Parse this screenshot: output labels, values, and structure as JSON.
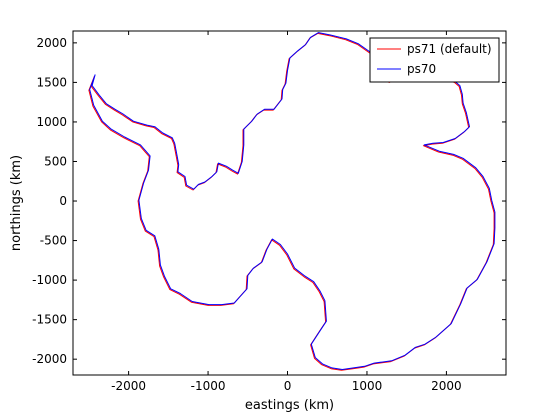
{
  "chart_data": {
    "type": "line",
    "title": "",
    "xlabel": "eastings (km)",
    "ylabel": "northings (km)",
    "xlim": [
      -2700,
      2750
    ],
    "ylim": [
      -2200,
      2150
    ],
    "xticks": [
      -2000,
      -1000,
      0,
      1000,
      2000
    ],
    "yticks": [
      -2000,
      -1500,
      -1000,
      -500,
      0,
      500,
      1000,
      1500,
      2000
    ],
    "grid": false,
    "legend_position": "top-right",
    "series": [
      {
        "name": "ps71 (default)",
        "color": "#ff0000",
        "points": [
          [
            -2430,
            1580
          ],
          [
            -2470,
            1450
          ],
          [
            -2380,
            1330
          ],
          [
            -2290,
            1220
          ],
          [
            -2180,
            1150
          ],
          [
            -2080,
            1090
          ],
          [
            -1950,
            1000
          ],
          [
            -1780,
            950
          ],
          [
            -1680,
            930
          ],
          [
            -1580,
            850
          ],
          [
            -1460,
            790
          ],
          [
            -1430,
            720
          ],
          [
            -1400,
            560
          ],
          [
            -1380,
            450
          ],
          [
            -1390,
            360
          ],
          [
            -1300,
            300
          ],
          [
            -1280,
            190
          ],
          [
            -1190,
            140
          ],
          [
            -1130,
            200
          ],
          [
            -1050,
            230
          ],
          [
            -960,
            300
          ],
          [
            -900,
            360
          ],
          [
            -880,
            470
          ],
          [
            -780,
            430
          ],
          [
            -700,
            380
          ],
          [
            -630,
            340
          ],
          [
            -580,
            490
          ],
          [
            -560,
            700
          ],
          [
            -560,
            900
          ],
          [
            -460,
            1000
          ],
          [
            -390,
            1090
          ],
          [
            -300,
            1150
          ],
          [
            -180,
            1150
          ],
          [
            -80,
            1280
          ],
          [
            -70,
            1400
          ],
          [
            -30,
            1480
          ],
          [
            -10,
            1640
          ],
          [
            20,
            1800
          ],
          [
            120,
            1890
          ],
          [
            220,
            1970
          ],
          [
            280,
            2060
          ],
          [
            380,
            2120
          ],
          [
            530,
            2090
          ],
          [
            730,
            2040
          ],
          [
            880,
            1980
          ],
          [
            1050,
            1860
          ],
          [
            1110,
            1780
          ],
          [
            1120,
            1680
          ],
          [
            1180,
            1560
          ],
          [
            1280,
            1500
          ],
          [
            1430,
            1550
          ],
          [
            1580,
            1600
          ],
          [
            1770,
            1600
          ],
          [
            1930,
            1550
          ],
          [
            2100,
            1500
          ],
          [
            2160,
            1450
          ],
          [
            2190,
            1340
          ],
          [
            2200,
            1230
          ],
          [
            2240,
            1110
          ],
          [
            2280,
            930
          ],
          [
            2220,
            870
          ],
          [
            2100,
            780
          ],
          [
            1950,
            730
          ],
          [
            1820,
            720
          ],
          [
            1710,
            700
          ],
          [
            1900,
            620
          ],
          [
            2080,
            580
          ],
          [
            2200,
            530
          ],
          [
            2360,
            410
          ],
          [
            2450,
            300
          ],
          [
            2530,
            150
          ],
          [
            2560,
            0
          ],
          [
            2600,
            -150
          ],
          [
            2600,
            -350
          ],
          [
            2590,
            -550
          ],
          [
            2500,
            -780
          ],
          [
            2380,
            -1000
          ],
          [
            2250,
            -1110
          ],
          [
            2170,
            -1310
          ],
          [
            2050,
            -1560
          ],
          [
            1860,
            -1730
          ],
          [
            1720,
            -1820
          ],
          [
            1600,
            -1860
          ],
          [
            1470,
            -1960
          ],
          [
            1300,
            -2030
          ],
          [
            1080,
            -2060
          ],
          [
            960,
            -2100
          ],
          [
            820,
            -2120
          ],
          [
            680,
            -2140
          ],
          [
            550,
            -2120
          ],
          [
            430,
            -2070
          ],
          [
            340,
            -1990
          ],
          [
            290,
            -1820
          ],
          [
            400,
            -1650
          ],
          [
            480,
            -1530
          ],
          [
            460,
            -1270
          ],
          [
            400,
            -1150
          ],
          [
            320,
            -1030
          ],
          [
            210,
            -960
          ],
          [
            80,
            -860
          ],
          [
            -10,
            -680
          ],
          [
            -100,
            -560
          ],
          [
            -200,
            -490
          ],
          [
            -270,
            -620
          ],
          [
            -330,
            -780
          ],
          [
            -440,
            -860
          ],
          [
            -510,
            -950
          ],
          [
            -520,
            -1120
          ],
          [
            -600,
            -1210
          ],
          [
            -680,
            -1300
          ],
          [
            -840,
            -1320
          ],
          [
            -1000,
            -1320
          ],
          [
            -1210,
            -1280
          ],
          [
            -1360,
            -1180
          ],
          [
            -1480,
            -1120
          ],
          [
            -1560,
            -960
          ],
          [
            -1610,
            -820
          ],
          [
            -1630,
            -620
          ],
          [
            -1680,
            -450
          ],
          [
            -1790,
            -380
          ],
          [
            -1850,
            -230
          ],
          [
            -1880,
            0
          ],
          [
            -1820,
            220
          ],
          [
            -1760,
            380
          ],
          [
            -1740,
            560
          ],
          [
            -1860,
            700
          ],
          [
            -2060,
            800
          ],
          [
            -2230,
            900
          ],
          [
            -2340,
            1000
          ],
          [
            -2450,
            1200
          ],
          [
            -2500,
            1400
          ],
          [
            -2430,
            1580
          ]
        ]
      },
      {
        "name": "ps70",
        "color": "#0000ff",
        "points": [
          [
            -2420,
            1600
          ],
          [
            -2460,
            1460
          ],
          [
            -2370,
            1340
          ],
          [
            -2280,
            1230
          ],
          [
            -2170,
            1160
          ],
          [
            -2070,
            1100
          ],
          [
            -1940,
            1010
          ],
          [
            -1770,
            960
          ],
          [
            -1670,
            940
          ],
          [
            -1570,
            860
          ],
          [
            -1450,
            800
          ],
          [
            -1420,
            730
          ],
          [
            -1390,
            570
          ],
          [
            -1370,
            460
          ],
          [
            -1380,
            370
          ],
          [
            -1290,
            310
          ],
          [
            -1270,
            200
          ],
          [
            -1180,
            150
          ],
          [
            -1120,
            210
          ],
          [
            -1040,
            240
          ],
          [
            -950,
            310
          ],
          [
            -890,
            370
          ],
          [
            -870,
            480
          ],
          [
            -770,
            440
          ],
          [
            -690,
            390
          ],
          [
            -620,
            350
          ],
          [
            -570,
            500
          ],
          [
            -550,
            710
          ],
          [
            -550,
            910
          ],
          [
            -450,
            1010
          ],
          [
            -380,
            1100
          ],
          [
            -290,
            1160
          ],
          [
            -170,
            1160
          ],
          [
            -70,
            1290
          ],
          [
            -60,
            1410
          ],
          [
            -20,
            1490
          ],
          [
            0,
            1650
          ],
          [
            30,
            1810
          ],
          [
            130,
            1900
          ],
          [
            230,
            1980
          ],
          [
            290,
            2070
          ],
          [
            390,
            2130
          ],
          [
            540,
            2100
          ],
          [
            740,
            2050
          ],
          [
            890,
            1990
          ],
          [
            1060,
            1870
          ],
          [
            1120,
            1790
          ],
          [
            1130,
            1690
          ],
          [
            1190,
            1570
          ],
          [
            1290,
            1510
          ],
          [
            1440,
            1560
          ],
          [
            1590,
            1610
          ],
          [
            1780,
            1610
          ],
          [
            1940,
            1560
          ],
          [
            2110,
            1510
          ],
          [
            2170,
            1460
          ],
          [
            2200,
            1350
          ],
          [
            2210,
            1240
          ],
          [
            2250,
            1120
          ],
          [
            2290,
            940
          ],
          [
            2230,
            880
          ],
          [
            2110,
            790
          ],
          [
            1960,
            740
          ],
          [
            1830,
            730
          ],
          [
            1720,
            710
          ],
          [
            1910,
            630
          ],
          [
            2090,
            590
          ],
          [
            2210,
            540
          ],
          [
            2370,
            420
          ],
          [
            2460,
            310
          ],
          [
            2540,
            160
          ],
          [
            2570,
            10
          ],
          [
            2610,
            -140
          ],
          [
            2610,
            -340
          ],
          [
            2600,
            -540
          ],
          [
            2510,
            -770
          ],
          [
            2390,
            -990
          ],
          [
            2260,
            -1100
          ],
          [
            2180,
            -1300
          ],
          [
            2060,
            -1550
          ],
          [
            1870,
            -1720
          ],
          [
            1730,
            -1810
          ],
          [
            1610,
            -1850
          ],
          [
            1480,
            -1950
          ],
          [
            1310,
            -2020
          ],
          [
            1090,
            -2050
          ],
          [
            970,
            -2090
          ],
          [
            830,
            -2110
          ],
          [
            690,
            -2130
          ],
          [
            560,
            -2110
          ],
          [
            440,
            -2060
          ],
          [
            350,
            -1980
          ],
          [
            300,
            -1810
          ],
          [
            410,
            -1640
          ],
          [
            490,
            -1520
          ],
          [
            470,
            -1260
          ],
          [
            410,
            -1140
          ],
          [
            330,
            -1020
          ],
          [
            220,
            -950
          ],
          [
            90,
            -850
          ],
          [
            0,
            -670
          ],
          [
            -90,
            -550
          ],
          [
            -190,
            -480
          ],
          [
            -260,
            -610
          ],
          [
            -320,
            -770
          ],
          [
            -430,
            -850
          ],
          [
            -500,
            -940
          ],
          [
            -510,
            -1110
          ],
          [
            -590,
            -1200
          ],
          [
            -670,
            -1290
          ],
          [
            -830,
            -1310
          ],
          [
            -990,
            -1310
          ],
          [
            -1200,
            -1270
          ],
          [
            -1350,
            -1170
          ],
          [
            -1470,
            -1110
          ],
          [
            -1550,
            -950
          ],
          [
            -1600,
            -810
          ],
          [
            -1620,
            -610
          ],
          [
            -1670,
            -440
          ],
          [
            -1780,
            -370
          ],
          [
            -1840,
            -220
          ],
          [
            -1870,
            10
          ],
          [
            -1810,
            230
          ],
          [
            -1750,
            390
          ],
          [
            -1730,
            570
          ],
          [
            -1850,
            710
          ],
          [
            -2050,
            810
          ],
          [
            -2220,
            910
          ],
          [
            -2330,
            1010
          ],
          [
            -2440,
            1210
          ],
          [
            -2490,
            1410
          ],
          [
            -2420,
            1600
          ]
        ]
      }
    ]
  }
}
